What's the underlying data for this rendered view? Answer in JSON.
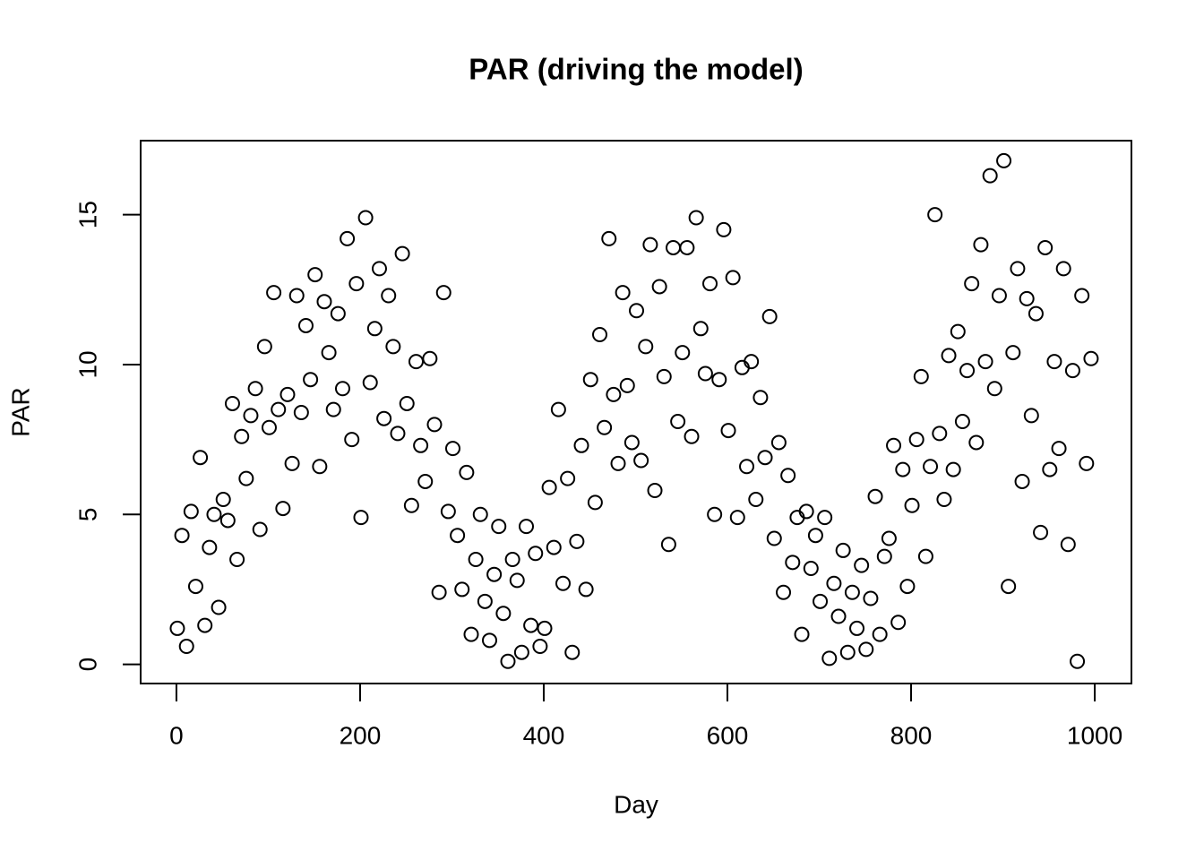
{
  "chart_data": {
    "type": "scatter",
    "title": "PAR (driving the model)",
    "x_label": "Day",
    "y_label": "PAR",
    "x": [
      1,
      6,
      11,
      16,
      21,
      26,
      31,
      36,
      41,
      46,
      51,
      56,
      61,
      66,
      71,
      76,
      81,
      86,
      91,
      96,
      101,
      106,
      111,
      116,
      121,
      126,
      131,
      136,
      141,
      146,
      151,
      156,
      161,
      166,
      171,
      176,
      181,
      186,
      191,
      196,
      201,
      206,
      211,
      216,
      221,
      226,
      231,
      236,
      241,
      246,
      251,
      256,
      261,
      266,
      271,
      276,
      281,
      286,
      291,
      296,
      301,
      306,
      311,
      316,
      321,
      326,
      331,
      336,
      341,
      346,
      351,
      356,
      361,
      366,
      371,
      376,
      381,
      386,
      391,
      396,
      401,
      406,
      411,
      416,
      421,
      426,
      431,
      436,
      441,
      446,
      451,
      456,
      461,
      466,
      471,
      476,
      481,
      486,
      491,
      496,
      501,
      506,
      511,
      516,
      521,
      526,
      531,
      536,
      541,
      546,
      551,
      556,
      561,
      566,
      571,
      576,
      581,
      586,
      591,
      596,
      601,
      606,
      611,
      616,
      621,
      626,
      631,
      636,
      641,
      646,
      651,
      656,
      661,
      666,
      671,
      676,
      681,
      686,
      691,
      696,
      701,
      706,
      711,
      716,
      721,
      726,
      731,
      736,
      741,
      746,
      751,
      756,
      761,
      766,
      771,
      776,
      781,
      786,
      791,
      796,
      801,
      806,
      811,
      816,
      821,
      826,
      831,
      836,
      841,
      846,
      851,
      856,
      861,
      866,
      871,
      876,
      881,
      886,
      891,
      896,
      901,
      906,
      911,
      916,
      921,
      926,
      931,
      936,
      941,
      946,
      951,
      956,
      961,
      966,
      971,
      976,
      981,
      986,
      991,
      996
    ],
    "values": [
      1.2,
      4.3,
      0.6,
      5.1,
      2.6,
      6.9,
      1.3,
      3.9,
      5.0,
      1.9,
      5.5,
      4.8,
      8.7,
      3.5,
      7.6,
      6.2,
      8.3,
      9.2,
      4.5,
      10.6,
      7.9,
      12.4,
      8.5,
      5.2,
      9.0,
      6.7,
      12.3,
      8.4,
      11.3,
      9.5,
      13.0,
      6.6,
      12.1,
      10.4,
      8.5,
      11.7,
      9.2,
      14.2,
      7.5,
      12.7,
      4.9,
      14.9,
      9.4,
      11.2,
      13.2,
      8.2,
      12.3,
      10.6,
      7.7,
      13.7,
      8.7,
      5.3,
      10.1,
      7.3,
      6.1,
      10.2,
      8.0,
      2.4,
      12.4,
      5.1,
      7.2,
      4.3,
      2.5,
      6.4,
      1.0,
      3.5,
      5.0,
      2.1,
      0.8,
      3.0,
      4.6,
      1.7,
      0.1,
      3.5,
      2.8,
      0.4,
      4.6,
      1.3,
      3.7,
      0.6,
      1.2,
      5.9,
      3.9,
      8.5,
      2.7,
      6.2,
      0.4,
      4.1,
      7.3,
      2.5,
      9.5,
      5.4,
      11.0,
      7.9,
      14.2,
      9.0,
      6.7,
      12.4,
      9.3,
      7.4,
      11.8,
      6.8,
      10.6,
      14.0,
      5.8,
      12.6,
      9.6,
      4.0,
      13.9,
      8.1,
      10.4,
      13.9,
      7.6,
      14.9,
      11.2,
      9.7,
      12.7,
      5.0,
      9.5,
      14.5,
      7.8,
      12.9,
      4.9,
      9.9,
      6.6,
      10.1,
      5.5,
      8.9,
      6.9,
      11.6,
      4.2,
      7.4,
      2.4,
      6.3,
      3.4,
      4.9,
      1.0,
      5.1,
      3.2,
      4.3,
      2.1,
      4.9,
      0.2,
      2.7,
      1.6,
      3.8,
      0.4,
      2.4,
      1.2,
      3.3,
      0.5,
      2.2,
      5.6,
      1.0,
      3.6,
      4.2,
      7.3,
      1.4,
      6.5,
      2.6,
      5.3,
      7.5,
      9.6,
      3.6,
      6.6,
      15.0,
      7.7,
      5.5,
      10.3,
      6.5,
      11.1,
      8.1,
      9.8,
      12.7,
      7.4,
      14.0,
      10.1,
      16.3,
      9.2,
      12.3,
      16.8,
      2.6,
      10.4,
      13.2,
      6.1,
      12.2,
      8.3,
      11.7,
      4.4,
      13.9,
      6.5,
      10.1,
      7.2,
      13.2,
      4.0,
      9.8,
      0.1,
      12.3,
      6.7,
      10.2
    ],
    "color": "#000000",
    "xlim": [
      -38.96,
      1039.96
    ],
    "ylim": [
      -0.64,
      17.47
    ],
    "xticks": [
      0,
      200,
      400,
      600,
      800,
      1000
    ],
    "yticks": [
      0,
      5,
      10,
      15
    ]
  }
}
